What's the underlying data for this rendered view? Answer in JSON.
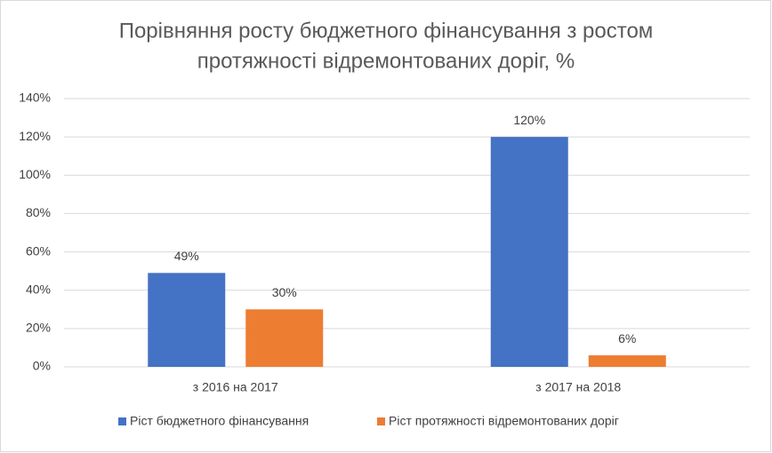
{
  "chart_data": {
    "type": "bar",
    "title": [
      "Порівняння росту бюджетного фінансування з ростом",
      "протяжності відремонтованих доріг, %"
    ],
    "categories": [
      "з 2016 на 2017",
      "з 2017 на 2018"
    ],
    "series": [
      {
        "name": "Ріст бюджетного фінансування",
        "color": "#4472c4",
        "values": [
          49,
          120
        ],
        "value_labels": [
          "49%",
          "120%"
        ]
      },
      {
        "name": "Ріст протяжності відремонтованих доріг",
        "color": "#ed7d31",
        "values": [
          30,
          6
        ],
        "value_labels": [
          "30%",
          "6%"
        ]
      }
    ],
    "ylim": [
      0,
      140
    ],
    "yticks": [
      {
        "value": 0,
        "label": "0%"
      },
      {
        "value": 20,
        "label": "20%"
      },
      {
        "value": 40,
        "label": "40%"
      },
      {
        "value": 60,
        "label": "60%"
      },
      {
        "value": 80,
        "label": "80%"
      },
      {
        "value": 100,
        "label": "100%"
      },
      {
        "value": 120,
        "label": "120%"
      },
      {
        "value": 140,
        "label": "140%"
      }
    ],
    "grid": true,
    "legend": "bottom"
  }
}
